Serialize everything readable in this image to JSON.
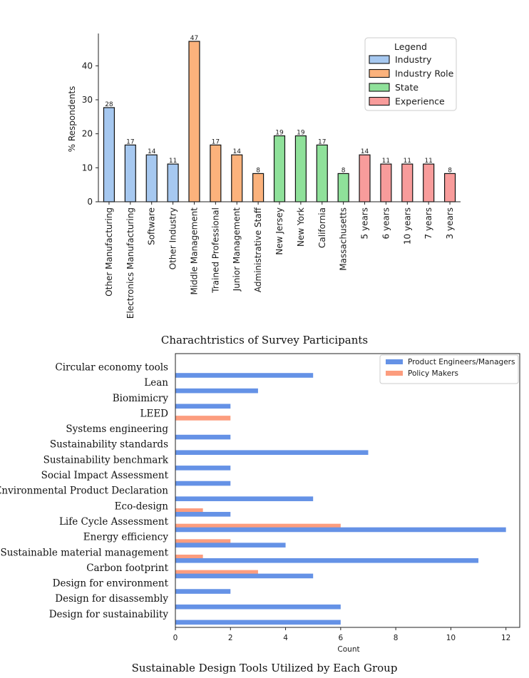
{
  "chart_data": [
    {
      "type": "bar",
      "ylabel": "% Respondents",
      "ylim": [
        0,
        49.5
      ],
      "yticks": [
        0,
        10,
        20,
        30,
        40
      ],
      "caption": "Charachtristics of Survey Participants",
      "legend": {
        "title": "Legend",
        "placement": "top-right",
        "entries": [
          {
            "name": "Industry",
            "color": "#a6c8f0"
          },
          {
            "name": "Industry Role",
            "color": "#fbb27c"
          },
          {
            "name": "State",
            "color": "#8fe19a"
          },
          {
            "name": "Experience",
            "color": "#f89c9b"
          }
        ]
      },
      "categories": [
        "Other Manufacturing",
        "Electronics Manufacturing",
        "Software",
        "Other Industry",
        "Middle Management",
        "Trained Professional",
        "Junior Management",
        "Administrative Staff",
        "New Jersey",
        "New York",
        "California",
        "Massachusetts",
        "5 years",
        "6 years",
        "10 years",
        "7 years",
        "3 years"
      ],
      "values": [
        28,
        17,
        14,
        11,
        47,
        17,
        14,
        8,
        19,
        19,
        17,
        8,
        14,
        11,
        11,
        11,
        8
      ],
      "plot_values": [
        27.7,
        16.7,
        13.8,
        11.1,
        47.2,
        16.7,
        13.8,
        8.3,
        19.4,
        19.4,
        16.7,
        8.3,
        13.8,
        11.1,
        11.1,
        11.1,
        8.3
      ],
      "groups": [
        "Industry",
        "Industry",
        "Industry",
        "Industry",
        "Industry Role",
        "Industry Role",
        "Industry Role",
        "Industry Role",
        "State",
        "State",
        "State",
        "State",
        "Experience",
        "Experience",
        "Experience",
        "Experience",
        "Experience"
      ]
    },
    {
      "type": "bar",
      "orientation": "horizontal",
      "xlabel": "Count",
      "xlim": [
        0,
        12.5
      ],
      "xticks": [
        0,
        2,
        4,
        6,
        8,
        10,
        12
      ],
      "caption": "Sustainable Design Tools Utilized by Each Group",
      "legend_placement": "top-right",
      "categories": [
        "Circular economy tools",
        "Lean",
        "Biomimicry",
        "LEED",
        "Systems engineering",
        "Sustainability standards",
        "Sustainability benchmark",
        "Social Impact Assessment",
        "Environmental Product Declaration",
        "Eco-design",
        "Life Cycle Assessment",
        "Energy efficiency",
        "Sustainable material management",
        "Carbon footprint",
        "Design for environment",
        "Design for disassembly",
        "Design for sustainability"
      ],
      "series": [
        {
          "name": "Product Engineers/Managers",
          "color": "#6592e6",
          "values": [
            5,
            3,
            2,
            0,
            2,
            7,
            2,
            2,
            5,
            2,
            12,
            4,
            11,
            5,
            2,
            6,
            6
          ]
        },
        {
          "name": "Policy Makers",
          "color": "#fc9d7e",
          "values": [
            0,
            0,
            0,
            2,
            0,
            0,
            0,
            0,
            0,
            1,
            6,
            2,
            1,
            3,
            0,
            0,
            0
          ]
        }
      ]
    }
  ]
}
